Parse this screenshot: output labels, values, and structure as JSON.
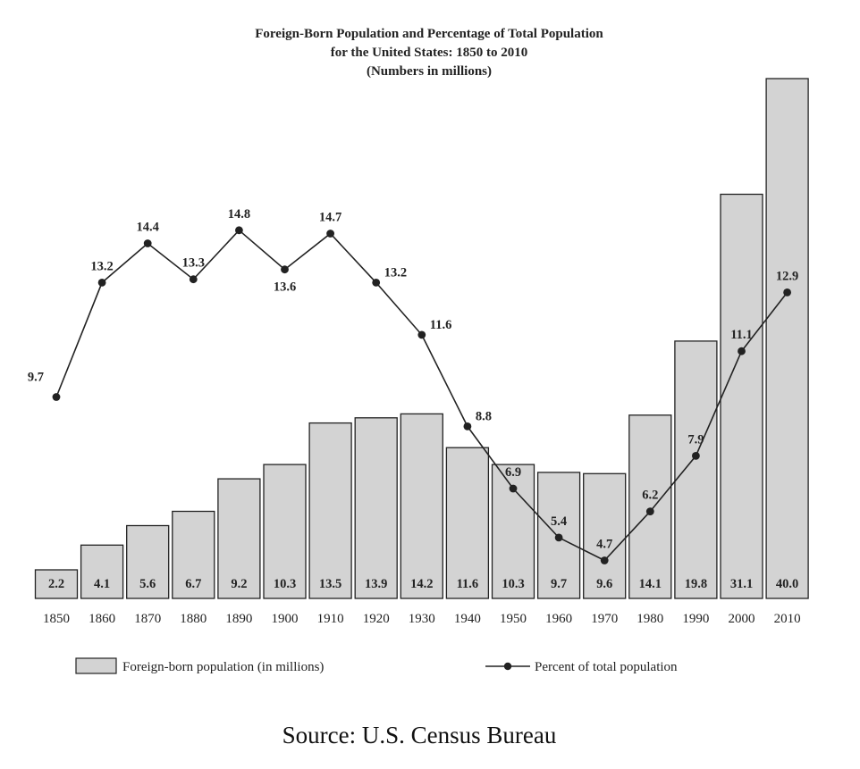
{
  "chart_data": {
    "type": "bar",
    "title": [
      "Foreign-Born Population and Percentage of Total Population",
      "for the United States: 1850 to 2010",
      "(Numbers in millions)"
    ],
    "categories": [
      "1850",
      "1860",
      "1870",
      "1880",
      "1890",
      "1900",
      "1910",
      "1920",
      "1930",
      "1940",
      "1950",
      "1960",
      "1970",
      "1980",
      "1990",
      "2000",
      "2010"
    ],
    "series": [
      {
        "name": "Foreign-born population (in millions)",
        "type": "bar",
        "values": [
          2.2,
          4.1,
          5.6,
          6.7,
          9.2,
          10.3,
          13.5,
          13.9,
          14.2,
          11.6,
          10.3,
          9.7,
          9.6,
          14.1,
          19.8,
          31.1,
          40.0
        ],
        "labels": [
          "2.2",
          "4.1",
          "5.6",
          "6.7",
          "9.2",
          "10.3",
          "13.5",
          "13.9",
          "14.2",
          "11.6",
          "10.3",
          "9.7",
          "9.6",
          "14.1",
          "19.8",
          "31.1",
          "40.0"
        ]
      },
      {
        "name": "Percent of total population",
        "type": "line",
        "values": [
          9.7,
          13.2,
          14.4,
          13.3,
          14.8,
          13.6,
          14.7,
          13.2,
          11.6,
          8.8,
          6.9,
          5.4,
          4.7,
          6.2,
          7.9,
          11.1,
          12.9
        ],
        "labels": [
          "9.7",
          "13.2",
          "14.4",
          "13.3",
          "14.8",
          "13.6",
          "14.7",
          "13.2",
          "11.6",
          "8.8",
          "6.9",
          "5.4",
          "4.7",
          "6.2",
          "7.9",
          "11.1",
          "12.9"
        ]
      }
    ],
    "ylim": [
      0,
      40
    ],
    "grid": false,
    "legend_position": "bottom",
    "source": "Source: U.S. Census Bureau",
    "colors": {
      "bar_fill": "#d3d3d3",
      "bar_stroke": "#222222",
      "line": "#222222"
    }
  }
}
